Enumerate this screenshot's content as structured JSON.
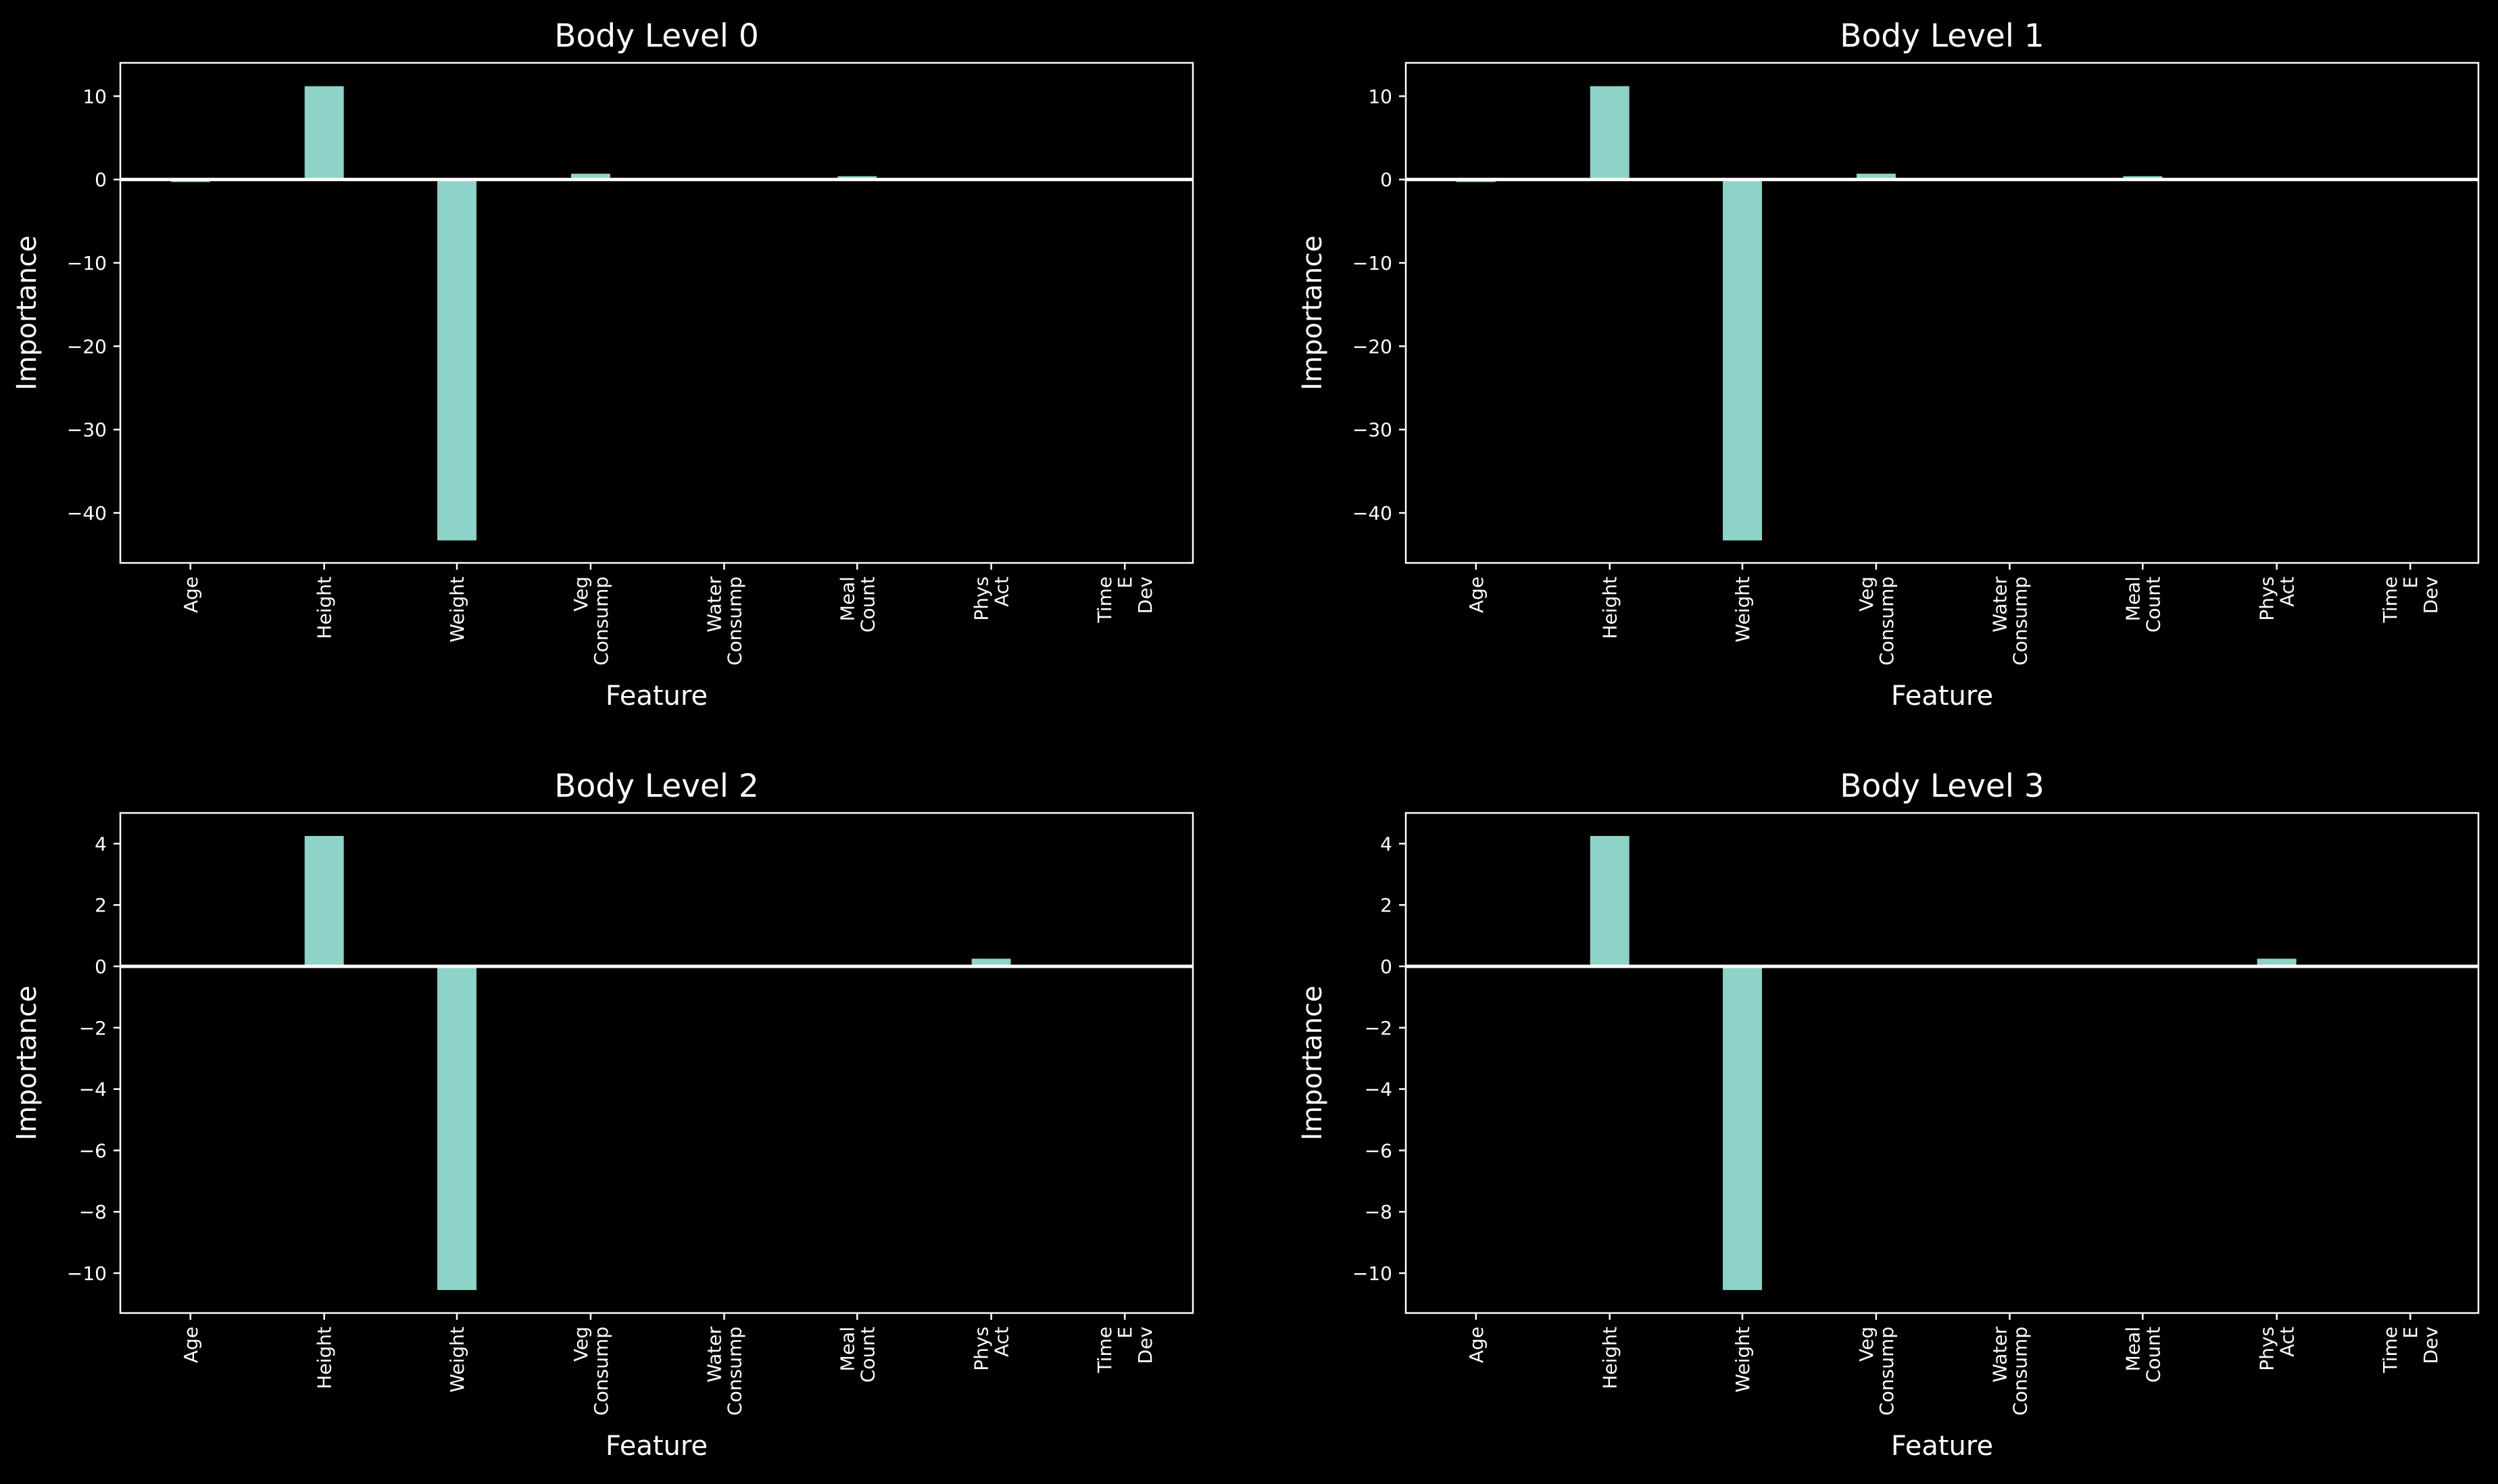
{
  "colors": {
    "background": "#000000",
    "bar": "#8dd3c7",
    "axes": "#ffffff",
    "text": "#ffffff"
  },
  "chart_data": [
    {
      "type": "bar",
      "title": "Body Level 0",
      "xlabel": "Feature",
      "ylabel": "Importance",
      "categories": [
        "Age",
        "Height",
        "Weight",
        "Veg\nConsump",
        "Water\nConsump",
        "Meal\nCount",
        "Phys\nAct",
        "Time\nE\nDev"
      ],
      "values": [
        -0.3,
        11.2,
        -43.3,
        0.7,
        0.1,
        0.4,
        0.1,
        0.0
      ],
      "ylim": [
        -46,
        14
      ],
      "yticks": [
        10,
        0,
        -10,
        -20,
        -30,
        -40
      ],
      "ytick_labels": [
        "10",
        "0",
        "−10",
        "−20",
        "−30",
        "−40"
      ],
      "zero_line": true,
      "grid": false,
      "legend": "none"
    },
    {
      "type": "bar",
      "title": "Body Level 1",
      "xlabel": "Feature",
      "ylabel": "Importance",
      "categories": [
        "Age",
        "Height",
        "Weight",
        "Veg\nConsump",
        "Water\nConsump",
        "Meal\nCount",
        "Phys\nAct",
        "Time\nE\nDev"
      ],
      "values": [
        -0.3,
        11.2,
        -43.3,
        0.7,
        0.1,
        0.4,
        0.1,
        0.0
      ],
      "ylim": [
        -46,
        14
      ],
      "yticks": [
        10,
        0,
        -10,
        -20,
        -30,
        -40
      ],
      "ytick_labels": [
        "10",
        "0",
        "−10",
        "−20",
        "−30",
        "−40"
      ],
      "zero_line": true,
      "grid": false,
      "legend": "none"
    },
    {
      "type": "bar",
      "title": "Body Level 2",
      "xlabel": "Feature",
      "ylabel": "Importance",
      "categories": [
        "Age",
        "Height",
        "Weight",
        "Veg\nConsump",
        "Water\nConsump",
        "Meal\nCount",
        "Phys\nAct",
        "Time\nE\nDev"
      ],
      "values": [
        0.0,
        4.25,
        -10.55,
        0.0,
        -0.05,
        0.0,
        0.25,
        0.0
      ],
      "ylim": [
        -11.3,
        5
      ],
      "yticks": [
        4,
        2,
        0,
        -2,
        -4,
        -6,
        -8,
        -10
      ],
      "ytick_labels": [
        "4",
        "2",
        "0",
        "−2",
        "−4",
        "−6",
        "−8",
        "−10"
      ],
      "zero_line": true,
      "grid": false,
      "legend": "none"
    },
    {
      "type": "bar",
      "title": "Body Level 3",
      "xlabel": "Feature",
      "ylabel": "Importance",
      "categories": [
        "Age",
        "Height",
        "Weight",
        "Veg\nConsump",
        "Water\nConsump",
        "Meal\nCount",
        "Phys\nAct",
        "Time\nE\nDev"
      ],
      "values": [
        0.0,
        4.25,
        -10.55,
        0.0,
        -0.05,
        0.0,
        0.25,
        0.0
      ],
      "ylim": [
        -11.3,
        5
      ],
      "yticks": [
        4,
        2,
        0,
        -2,
        -4,
        -6,
        -8,
        -10
      ],
      "ytick_labels": [
        "4",
        "2",
        "0",
        "−2",
        "−4",
        "−6",
        "−8",
        "−10"
      ],
      "zero_line": true,
      "grid": false,
      "legend": "none"
    }
  ]
}
